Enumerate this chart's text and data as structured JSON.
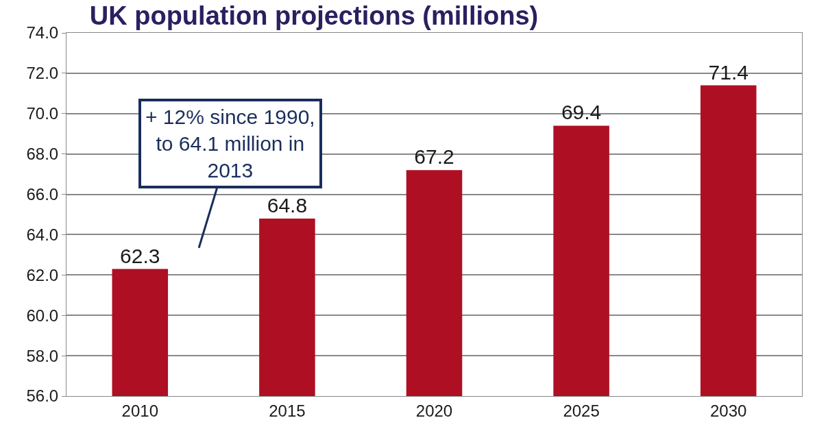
{
  "chart_data": {
    "type": "bar",
    "title": "UK population projections (millions)",
    "categories": [
      "2010",
      "2015",
      "2020",
      "2025",
      "2030"
    ],
    "values": [
      62.3,
      64.8,
      67.2,
      69.4,
      71.4
    ],
    "color": "#ae0f23",
    "ylim": [
      56,
      74
    ],
    "yticks": [
      {
        "value": 56,
        "label": "56.0"
      },
      {
        "value": 58,
        "label": "58.0"
      },
      {
        "value": 60,
        "label": "60.0"
      },
      {
        "value": 62,
        "label": "62.0"
      },
      {
        "value": 64,
        "label": "64.0"
      },
      {
        "value": 66,
        "label": "66.0"
      },
      {
        "value": 68,
        "label": "68.0"
      },
      {
        "value": 70,
        "label": "70.0"
      },
      {
        "value": 72,
        "label": "72.0"
      },
      {
        "value": 74,
        "label": "74.0"
      }
    ],
    "grid": "y",
    "data_labels": true,
    "annotations": [
      "+ 12% since 1990,\nto 64.1 million in\n2013"
    ]
  }
}
